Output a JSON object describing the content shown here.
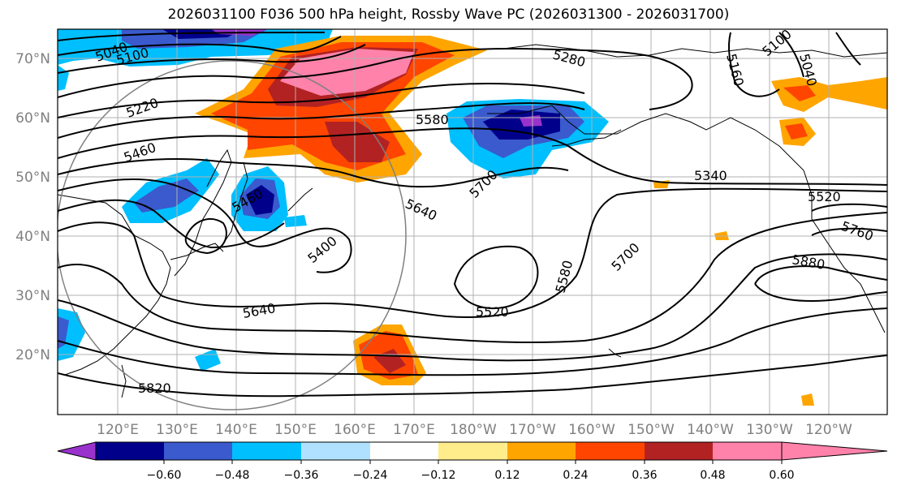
{
  "title": "2026031100 F036 500 hPa height, Rossby Wave PC (2026031300 - 2026031700)",
  "latitudes": [
    "70°N",
    "60°N",
    "50°N",
    "40°N",
    "30°N",
    "20°N"
  ],
  "longitudes": [
    "120°E",
    "130°E",
    "140°E",
    "150°E",
    "160°E",
    "170°E",
    "180°W",
    "170°W",
    "160°W",
    "150°W",
    "140°W",
    "130°W",
    "120°W"
  ],
  "contour_labels": [
    "5040",
    "5100",
    "5220",
    "5460",
    "5580",
    "5280",
    "5100",
    "5160",
    "5040",
    "5700",
    "5340",
    "5520",
    "5460",
    "5640",
    "5400",
    "5640",
    "5700",
    "5760",
    "5580",
    "5880",
    "5520",
    "5820"
  ],
  "colorbar": {
    "ticks": [
      "−0.60",
      "−0.48",
      "−0.36",
      "−0.24",
      "−0.12",
      "0.12",
      "0.24",
      "0.36",
      "0.48",
      "0.60"
    ],
    "colors": [
      "#9932CC",
      "#00008B",
      "#3A5ACD",
      "#00BFFF",
      "#B0E2FF",
      "#FFFFFF",
      "#FFEC8B",
      "#FFA500",
      "#FF4500",
      "#B22222",
      "#FF82AB"
    ]
  }
}
